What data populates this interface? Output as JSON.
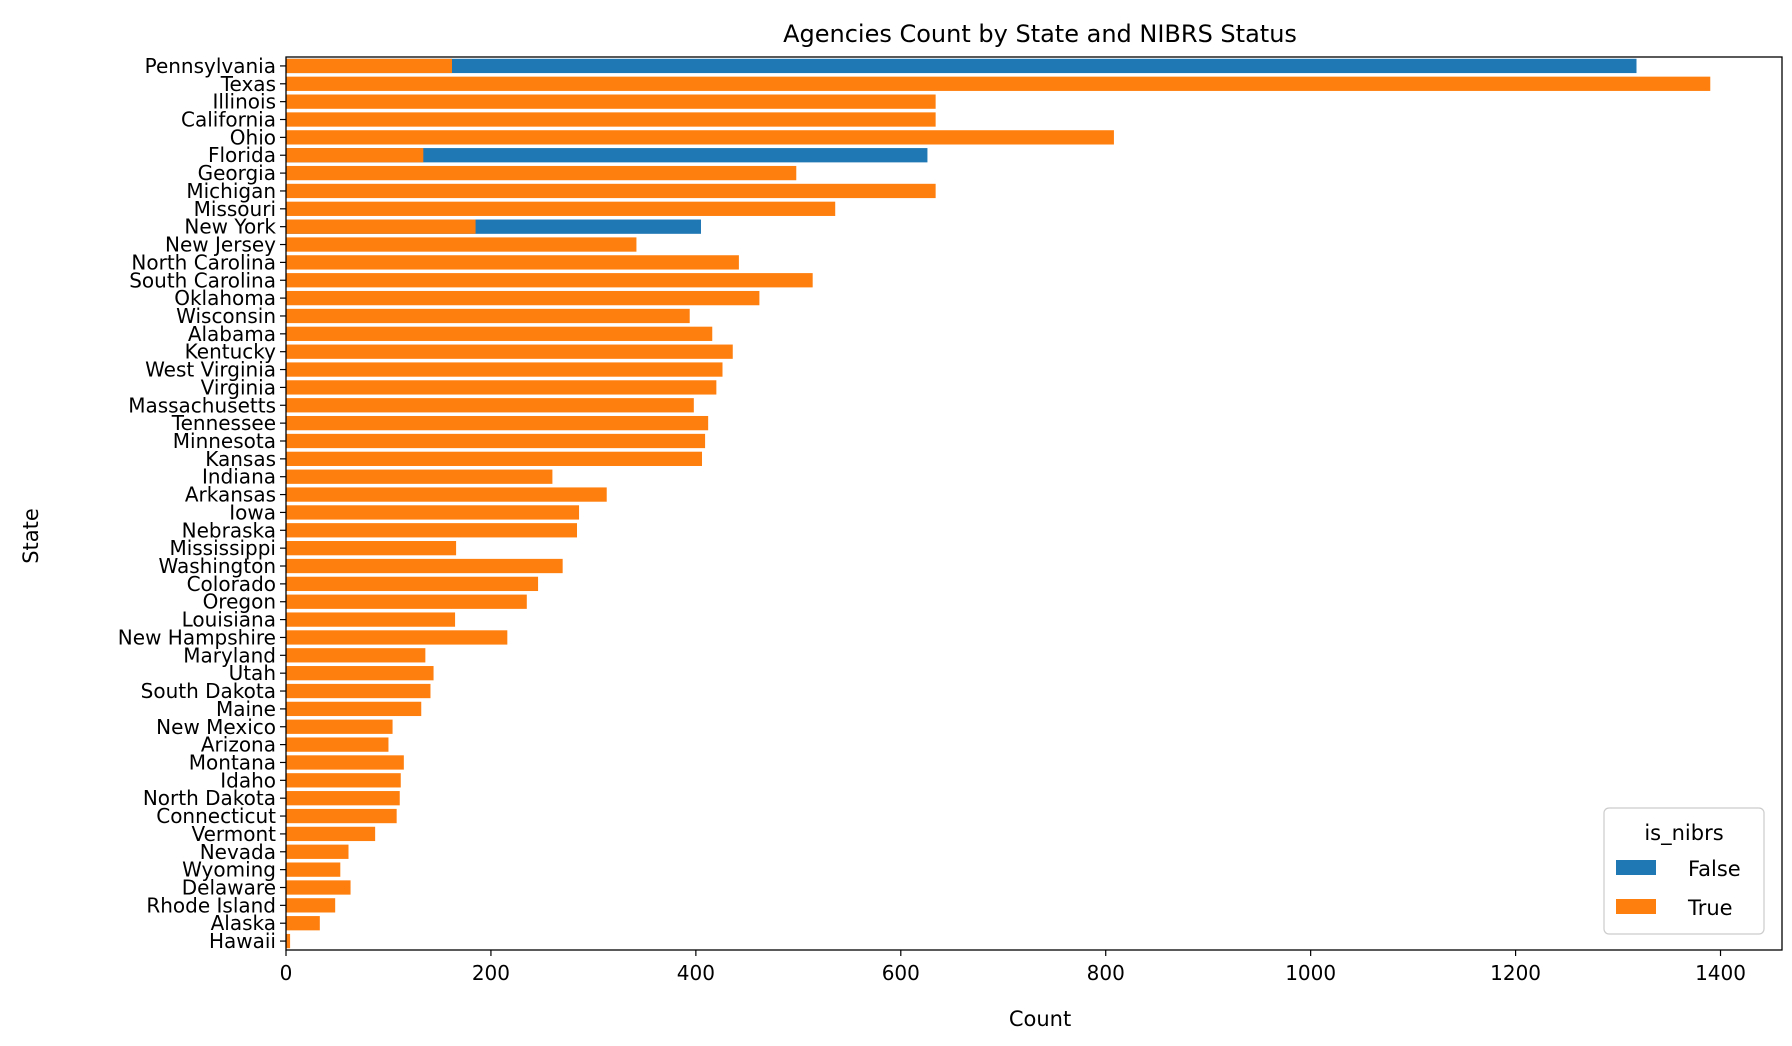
{
  "chart_data": {
    "type": "bar",
    "orientation": "horizontal",
    "title": "Agencies Count by State and NIBRS Status",
    "xlabel": "Count",
    "ylabel": "State",
    "xlim": [
      0,
      1460
    ],
    "xticks": [
      0,
      200,
      400,
      600,
      800,
      1000,
      1200,
      1400
    ],
    "grid": false,
    "categories": [
      "Pennsylvania",
      "Texas",
      "Illinois",
      "California",
      "Ohio",
      "Florida",
      "Georgia",
      "Michigan",
      "Missouri",
      "New York",
      "New Jersey",
      "North Carolina",
      "South Carolina",
      "Oklahoma",
      "Wisconsin",
      "Alabama",
      "Kentucky",
      "West Virginia",
      "Virginia",
      "Massachusetts",
      "Tennessee",
      "Minnesota",
      "Kansas",
      "Indiana",
      "Arkansas",
      "Iowa",
      "Nebraska",
      "Mississippi",
      "Washington",
      "Colorado",
      "Oregon",
      "Louisiana",
      "New Hampshire",
      "Maryland",
      "Utah",
      "South Dakota",
      "Maine",
      "New Mexico",
      "Arizona",
      "Montana",
      "Idaho",
      "North Dakota",
      "Connecticut",
      "Vermont",
      "Nevada",
      "Wyoming",
      "Delaware",
      "Rhode Island",
      "Alaska",
      "Hawaii"
    ],
    "series": [
      {
        "name": "False",
        "color": "#1f77b4",
        "values": [
          1318,
          0,
          0,
          0,
          0,
          626,
          0,
          0,
          0,
          405,
          0,
          0,
          0,
          0,
          0,
          0,
          0,
          0,
          0,
          0,
          0,
          0,
          0,
          0,
          0,
          0,
          0,
          0,
          0,
          0,
          0,
          0,
          0,
          0,
          0,
          0,
          0,
          0,
          0,
          0,
          0,
          0,
          0,
          0,
          0,
          0,
          0,
          0,
          0,
          0
        ]
      },
      {
        "name": "True",
        "color": "#ff7f0e",
        "values": [
          162,
          1390,
          634,
          634,
          808,
          134,
          498,
          634,
          536,
          185,
          342,
          442,
          514,
          462,
          394,
          416,
          436,
          426,
          420,
          398,
          412,
          409,
          406,
          260,
          313,
          286,
          284,
          166,
          270,
          246,
          235,
          165,
          216,
          136,
          144,
          141,
          132,
          104,
          100,
          115,
          112,
          111,
          108,
          87,
          61,
          53,
          63,
          48,
          33,
          4
        ]
      }
    ],
    "legend": {
      "title": "is_nibrs",
      "position": "lower-right",
      "labels": [
        "False",
        "True"
      ]
    }
  }
}
